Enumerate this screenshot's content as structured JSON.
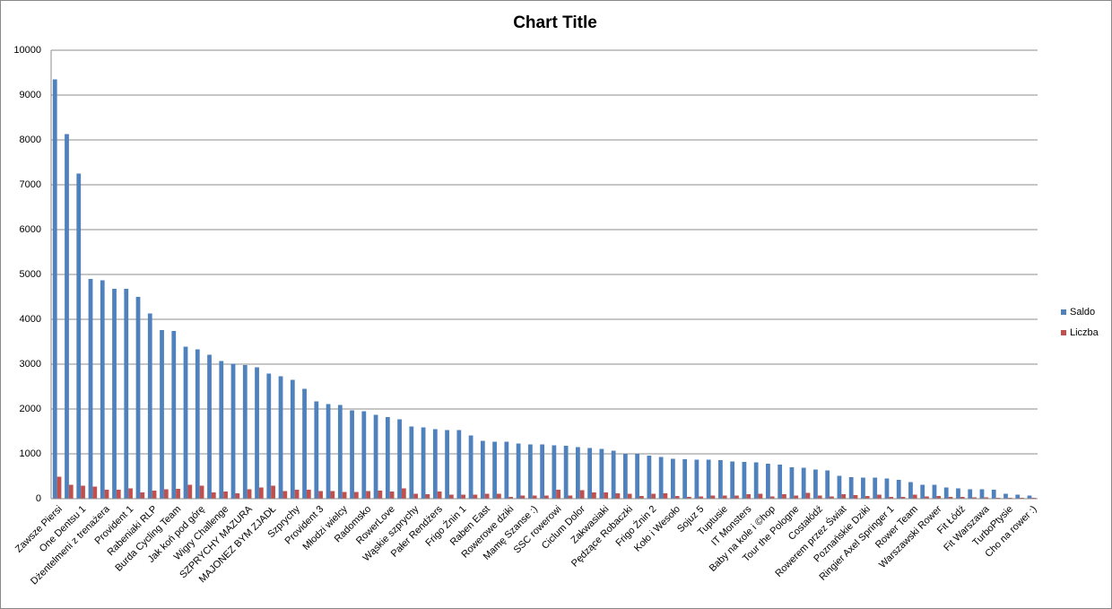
{
  "chart_data": {
    "type": "bar",
    "title": "Chart Title",
    "categories": [
      "Zawsze Piersi",
      null,
      "One Dentsu 1",
      null,
      "Dżentelmeni z trenażera",
      null,
      "Provident 1",
      null,
      "Rabeniaki RLP",
      null,
      "Burda Cycling Team",
      null,
      "Jak koń pod górę",
      null,
      "Wigry Challenge",
      null,
      "SZPRYCHY MAZURA",
      null,
      "MAJONEZ BYM ZJADŁ",
      null,
      "Szprychy",
      null,
      "Provident 3",
      null,
      "Młodzi wielcy",
      null,
      "Radomsko",
      null,
      "RowerLove",
      null,
      "Wąskie szprychy",
      null,
      "Pałer Rendżers",
      null,
      "Frigo Żnin 1",
      null,
      "Raben East",
      null,
      "Rowerowe dziki",
      null,
      "Mamę Szanse :)",
      null,
      "SSC rowerowi",
      null,
      "Ciclum Dolor",
      null,
      "Zakwasiaki",
      null,
      "Pędzące Robaczki",
      null,
      "Frigo Żnin 2",
      null,
      "Koło i Wesoło",
      null,
      "Sojuz 5",
      null,
      "Tuptusie",
      null,
      "IT Monsters",
      null,
      "Baby na kole i ©hop",
      null,
      "Tour the Pologne",
      null,
      "Costałódź",
      null,
      "Rowerem przez Świat",
      null,
      "Poznańskie Dziki",
      null,
      "Ringier Axel Springer 1",
      null,
      "Rower Team",
      null,
      "Warszawski Rower",
      null,
      "Fit Łódź",
      null,
      "Fit Warszawa",
      null,
      "TurboPtysie",
      null,
      "Cho na rower :)"
    ],
    "series": [
      {
        "name": "Saldo",
        "color": "#4f81bd",
        "values": [
          9350,
          8130,
          7250,
          4900,
          4870,
          4680,
          4680,
          4500,
          4130,
          3760,
          3740,
          3390,
          3330,
          3210,
          3070,
          3010,
          2980,
          2930,
          2790,
          2730,
          2650,
          2450,
          2170,
          2110,
          2090,
          1970,
          1950,
          1870,
          1820,
          1770,
          1610,
          1590,
          1550,
          1530,
          1530,
          1410,
          1290,
          1270,
          1270,
          1230,
          1210,
          1210,
          1190,
          1180,
          1150,
          1130,
          1110,
          1070,
          1000,
          1000,
          960,
          930,
          890,
          880,
          870,
          870,
          860,
          830,
          820,
          810,
          780,
          760,
          700,
          690,
          650,
          630,
          510,
          480,
          470,
          470,
          450,
          420,
          370,
          310,
          310,
          250,
          230,
          210,
          210,
          200,
          110,
          90,
          70
        ]
      },
      {
        "name": "Liczba",
        "color": "#c0504d",
        "values": [
          490,
          310,
          290,
          270,
          200,
          200,
          230,
          140,
          180,
          210,
          220,
          310,
          290,
          140,
          160,
          120,
          210,
          250,
          290,
          170,
          200,
          200,
          170,
          170,
          150,
          150,
          170,
          180,
          160,
          230,
          110,
          100,
          160,
          90,
          90,
          90,
          110,
          110,
          40,
          70,
          70,
          70,
          200,
          70,
          190,
          140,
          140,
          120,
          110,
          60,
          110,
          120,
          60,
          40,
          50,
          70,
          70,
          70,
          100,
          110,
          50,
          100,
          70,
          130,
          70,
          50,
          100,
          80,
          60,
          90,
          40,
          40,
          90,
          50,
          60,
          40,
          40,
          30,
          30,
          20,
          20,
          20,
          20
        ]
      }
    ],
    "ylim": [
      0,
      10000
    ],
    "yticks": [
      0,
      1000,
      2000,
      3000,
      4000,
      5000,
      6000,
      7000,
      8000,
      9000,
      10000
    ],
    "grid": true,
    "legend": "right"
  }
}
